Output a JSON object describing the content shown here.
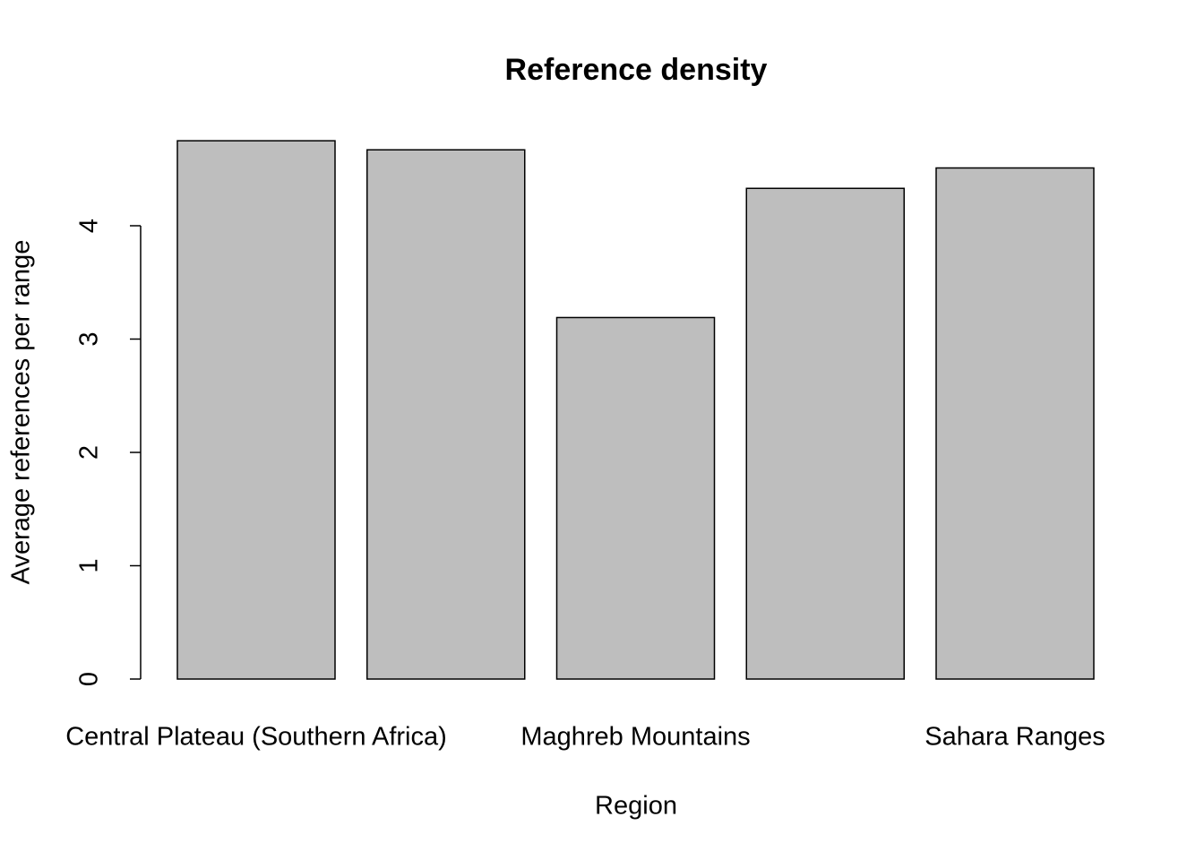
{
  "chart_data": {
    "type": "bar",
    "title": "Reference density",
    "x_label": "Region",
    "y_label": "Average references per range",
    "categories": [
      "Central Plateau (Southern Africa)",
      null,
      "Maghreb Mountains",
      null,
      "Sahara Ranges"
    ],
    "values": [
      4.75,
      4.67,
      3.19,
      4.33,
      4.51
    ],
    "color": "#bebebe",
    "ylim": [
      0,
      5
    ],
    "yticks": [
      0,
      1,
      2,
      3,
      4
    ],
    "grid": false
  }
}
